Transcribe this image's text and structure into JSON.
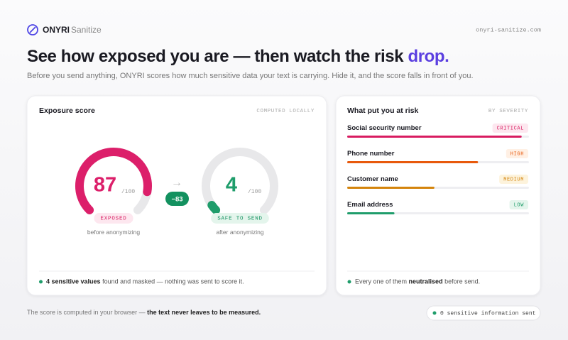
{
  "header": {
    "brand": "ONYRI",
    "product": "Sanitize",
    "url": "onyri-sanitize.com"
  },
  "hero": {
    "title": "See how exposed you are — then watch the risk ",
    "title_highlight": "drop.",
    "subtitle": "Before you send anything, ONYRI scores how much sensitive data your text is carrying. Hide it, and the score falls in front of you."
  },
  "exposure_card": {
    "title": "Exposure score",
    "tag": "COMPUTED LOCALLY",
    "before": {
      "score": 87,
      "max": {
        "value": 100,
        "label": "/100"
      },
      "status": "EXPOSED",
      "caption": "before anonymizing"
    },
    "after": {
      "score": 4,
      "max": {
        "value": 100,
        "label": "/100"
      },
      "status": "SAFE TO SEND",
      "caption": "after anonymizing"
    },
    "delta": {
      "value": -83,
      "label": "−83"
    },
    "footer_bold": "4 sensitive values",
    "footer_rest": " found and masked — nothing was sent to score it."
  },
  "risk_card": {
    "title": "What put you at risk",
    "tag": "BY SEVERITY",
    "items": [
      {
        "name": "Social security number",
        "severity": "CRITICAL",
        "level": 96
      },
      {
        "name": "Phone number",
        "severity": "HIGH",
        "level": 72
      },
      {
        "name": "Customer name",
        "severity": "MEDIUM",
        "level": 48
      },
      {
        "name": "Email address",
        "severity": "LOW",
        "level": 26
      }
    ],
    "footer_start": "Every one of them ",
    "footer_bold": "neutralised",
    "footer_end": " before send."
  },
  "footer": {
    "note": "The score is computed in your browser — ",
    "note_bold": "the text never leaves to be measured.",
    "badge": "0 sensitive information sent"
  }
}
